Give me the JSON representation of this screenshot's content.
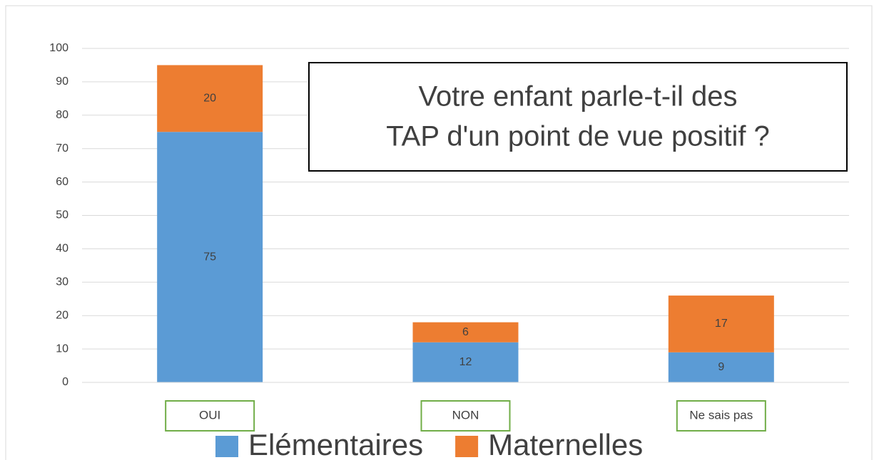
{
  "chart_data": {
    "type": "bar",
    "stacked": true,
    "title": [
      "Votre enfant parle-t-il des",
      "TAP  d'un point de vue positif ?"
    ],
    "categories": [
      "OUI",
      "NON",
      "Ne sais pas"
    ],
    "series": [
      {
        "name": "Elémentaires",
        "color": "#5b9bd5",
        "values": [
          75,
          12,
          9
        ]
      },
      {
        "name": "Maternelles",
        "color": "#ed7d31",
        "values": [
          20,
          6,
          17
        ]
      }
    ],
    "ylim": [
      0,
      100
    ],
    "yticks": [
      0,
      10,
      20,
      30,
      40,
      50,
      60,
      70,
      80,
      90,
      100
    ],
    "grid": true,
    "legend": "bottom"
  }
}
